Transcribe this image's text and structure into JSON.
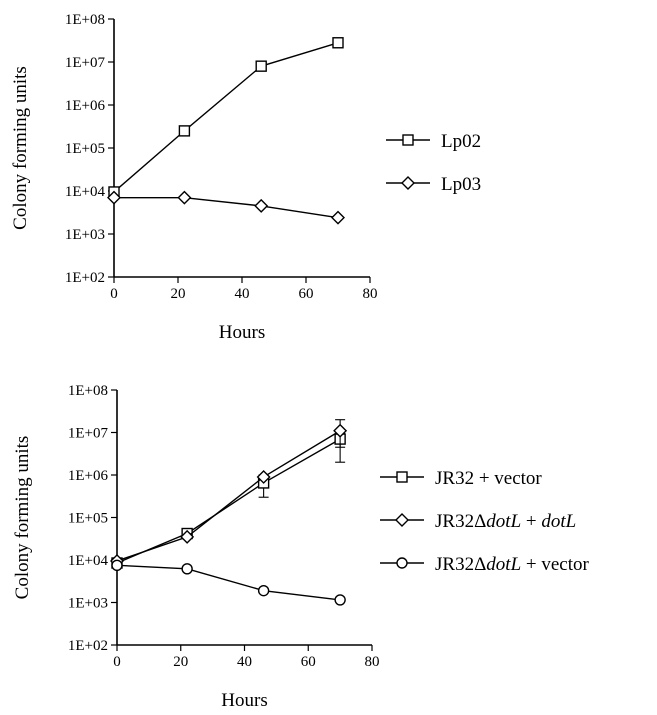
{
  "chart_data": [
    {
      "type": "line",
      "title": "",
      "xlabel": "Hours",
      "ylabel": "Colony forming units",
      "xlim": [
        0,
        80
      ],
      "ylim": [
        100,
        100000000
      ],
      "yscale": "log",
      "x_ticks": [
        "0",
        "20",
        "40",
        "60",
        "80"
      ],
      "y_ticks": [
        "1E+02",
        "1E+03",
        "1E+04",
        "1E+05",
        "1E+06",
        "1E+07",
        "1E+08"
      ],
      "legend": "right",
      "series": [
        {
          "name": "Lp02",
          "marker": "square",
          "x": [
            0,
            22,
            46,
            70
          ],
          "y": [
            9500,
            250000,
            8000000,
            28000000
          ]
        },
        {
          "name": "Lp03",
          "marker": "diamond",
          "x": [
            0,
            22,
            46,
            70
          ],
          "y": [
            7000,
            7000,
            4500,
            2400
          ]
        }
      ]
    },
    {
      "type": "line",
      "title": "",
      "xlabel": "Hours",
      "ylabel": "Colony forming units",
      "xlim": [
        0,
        80
      ],
      "ylim": [
        100,
        100000000
      ],
      "yscale": "log",
      "x_ticks": [
        "0",
        "20",
        "40",
        "60",
        "80"
      ],
      "y_ticks": [
        "1E+02",
        "1E+03",
        "1E+04",
        "1E+05",
        "1E+06",
        "1E+07",
        "1E+08"
      ],
      "legend": "right",
      "series": [
        {
          "name_parts": [
            {
              "t": "JR32 + vector"
            }
          ],
          "marker": "square",
          "x": [
            0,
            22,
            46,
            70
          ],
          "y": [
            8500,
            42000,
            650000,
            7000000
          ],
          "err": [
            null,
            null,
            350000,
            2500000
          ]
        },
        {
          "name_parts": [
            {
              "t": "JR32Δ"
            },
            {
              "t": "dotL",
              "i": true
            },
            {
              "t": " + "
            },
            {
              "t": "dotL",
              "i": true
            }
          ],
          "marker": "diamond",
          "x": [
            0,
            22,
            46,
            70
          ],
          "y": [
            9500,
            35000,
            900000,
            11000000
          ],
          "err": [
            null,
            null,
            null,
            9000000
          ]
        },
        {
          "name_parts": [
            {
              "t": "JR32Δ"
            },
            {
              "t": "dotL",
              "i": true
            },
            {
              "t": " + vector"
            }
          ],
          "marker": "circle",
          "x": [
            0,
            22,
            46,
            70
          ],
          "y": [
            7500,
            6200,
            1900,
            1150
          ],
          "err": [
            null,
            null,
            null,
            null
          ]
        }
      ]
    }
  ]
}
